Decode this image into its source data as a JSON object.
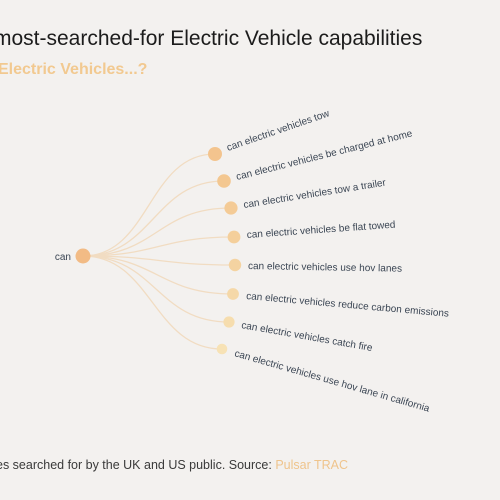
{
  "header": {
    "title": "most-searched-for Electric Vehicle capabilities",
    "subtitle": "Electric Vehicles...?"
  },
  "tree": {
    "root": "can",
    "branches": [
      "can electric vehicles tow",
      "can electric vehicles be charged at home",
      "can electric vehicles tow a trailer",
      "can electric vehicles be flat towed",
      "can electric vehicles use hov lanes",
      "can electric vehicles reduce carbon emissions",
      "can electric vehicles catch fire",
      "can electric vehicles use hov lane in california"
    ]
  },
  "footer": {
    "text": "es searched for by the UK and US public. Source: ",
    "source": "Pulsar TRAC"
  },
  "colors": {
    "background": "#f3f1ef",
    "root_node": "#f2bb85",
    "branch_nodes": [
      "#f3c48e",
      "#f3c790",
      "#f4cb96",
      "#f4cf9b",
      "#f4d3a1",
      "#f5d8a8",
      "#f6ddae",
      "#f7e2b5"
    ],
    "link": "#f1dcc2",
    "accent": "#efc48c"
  }
}
